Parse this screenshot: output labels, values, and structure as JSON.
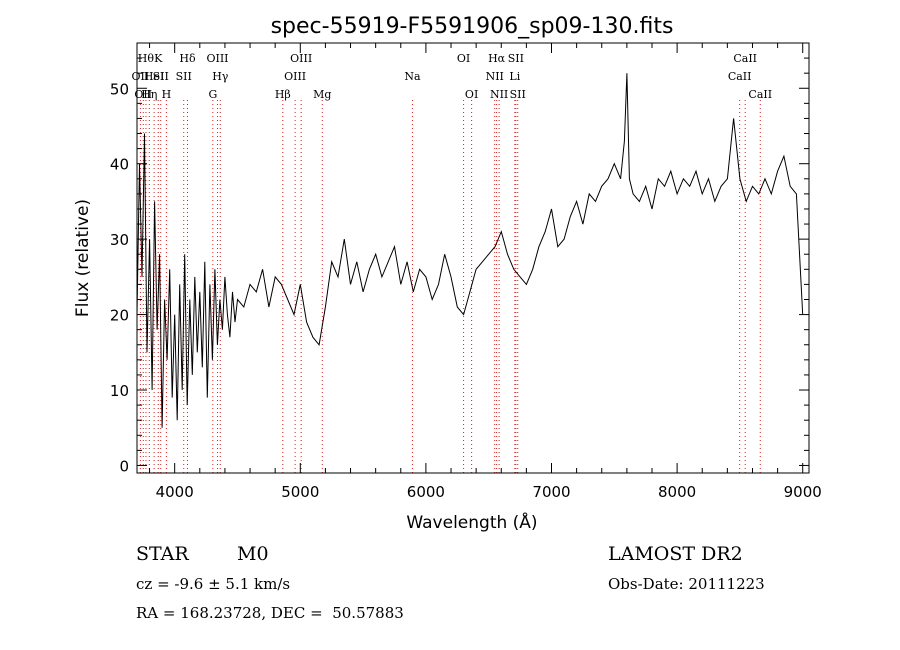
{
  "footer": {
    "object_class": "STAR",
    "subclass": "M0",
    "survey": "LAMOST DR2",
    "redshift": "cz = -9.6 ± 5.1 km/s",
    "obs_date": "Obs-Date: 20111223",
    "coords": "RA = 168.23728, DEC =  50.57883"
  },
  "chart_data": {
    "type": "line",
    "title": "spec-55919-F5591906_sp09-130.fits",
    "xlabel": "Wavelength (Å)",
    "ylabel": "Flux (relative)",
    "xlim": [
      3700,
      9050
    ],
    "ylim": [
      -1,
      56
    ],
    "xticks": [
      4000,
      5000,
      6000,
      7000,
      8000,
      9000
    ],
    "yticks": [
      0,
      10,
      20,
      30,
      40,
      50
    ],
    "grid": false,
    "line_color": "#000000",
    "marker_color": "#cc2222",
    "series": [
      {
        "x": [
          3700,
          3720,
          3740,
          3760,
          3780,
          3800,
          3820,
          3840,
          3860,
          3880,
          3900,
          3920,
          3940,
          3960,
          3980,
          4000,
          4020,
          4040,
          4060,
          4080,
          4100,
          4120,
          4140,
          4160,
          4180,
          4200,
          4220,
          4240,
          4260,
          4280,
          4300,
          4320,
          4340,
          4360,
          4380,
          4400,
          4420,
          4440,
          4460,
          4480,
          4500,
          4550,
          4600,
          4650,
          4700,
          4750,
          4800,
          4850,
          4900,
          4950,
          5000,
          5050,
          5100,
          5150,
          5200,
          5250,
          5300,
          5350,
          5400,
          5450,
          5500,
          5550,
          5600,
          5650,
          5700,
          5750,
          5800,
          5850,
          5900,
          5950,
          6000,
          6050,
          6100,
          6150,
          6200,
          6250,
          6300,
          6350,
          6400,
          6450,
          6500,
          6550,
          6600,
          6650,
          6700,
          6750,
          6800,
          6850,
          6900,
          6950,
          7000,
          7050,
          7100,
          7150,
          7200,
          7250,
          7300,
          7350,
          7400,
          7450,
          7500,
          7550,
          7580,
          7600,
          7620,
          7650,
          7700,
          7750,
          7800,
          7850,
          7900,
          7950,
          8000,
          8050,
          8100,
          8150,
          8200,
          8250,
          8300,
          8350,
          8400,
          8450,
          8500,
          8550,
          8600,
          8650,
          8700,
          8750,
          8800,
          8850,
          8900,
          8950,
          9000
        ],
        "y": [
          20,
          40,
          25,
          44,
          15,
          30,
          10,
          35,
          18,
          28,
          5,
          22,
          14,
          26,
          9,
          20,
          6,
          24,
          10,
          28,
          8,
          22,
          12,
          25,
          15,
          23,
          13,
          27,
          9,
          24,
          14,
          26,
          16,
          22,
          18,
          25,
          20,
          17,
          23,
          19,
          22,
          21,
          24,
          23,
          26,
          21,
          25,
          24,
          22,
          20,
          24,
          19,
          17,
          16,
          21,
          27,
          25,
          30,
          24,
          27,
          23,
          26,
          28,
          25,
          27,
          29,
          24,
          27,
          23,
          26,
          25,
          22,
          24,
          28,
          25,
          21,
          20,
          23,
          26,
          27,
          28,
          29,
          31,
          28,
          26,
          25,
          24,
          26,
          29,
          31,
          34,
          29,
          30,
          33,
          35,
          32,
          36,
          35,
          37,
          38,
          40,
          38,
          43,
          52,
          38,
          36,
          35,
          37,
          34,
          38,
          37,
          39,
          36,
          38,
          37,
          39,
          36,
          38,
          35,
          37,
          38,
          46,
          38,
          35,
          37,
          36,
          38,
          36,
          39,
          41,
          37,
          36,
          20
        ]
      }
    ],
    "line_markers": [
      {
        "wl": 3727,
        "label": "OII",
        "row": 2
      },
      {
        "wl": 3750,
        "label": "OII",
        "row": 3
      },
      {
        "wl": 3771,
        "label": "Hθ",
        "row": 1
      },
      {
        "wl": 3798,
        "label": "Hη",
        "row": 3
      },
      {
        "wl": 3836,
        "label": "HeI",
        "row": 2
      },
      {
        "wl": 3869,
        "label": "K",
        "row": 1
      },
      {
        "wl": 3889,
        "label": "SII",
        "row": 2
      },
      {
        "wl": 3934,
        "label": "H",
        "row": 3
      },
      {
        "wl": 4102,
        "label": "Hδ",
        "row": 1
      },
      {
        "wl": 4072,
        "label": "SII",
        "row": 2
      },
      {
        "wl": 4341,
        "label": "OIII",
        "row": 1
      },
      {
        "wl": 4363,
        "label": "Hγ",
        "row": 2
      },
      {
        "wl": 4304,
        "label": "G",
        "row": 3
      },
      {
        "wl": 4861,
        "label": "Hβ",
        "row": 3
      },
      {
        "wl": 4959,
        "label": "OIII",
        "row": 2
      },
      {
        "wl": 5007,
        "label": "OIII",
        "row": 1
      },
      {
        "wl": 5175,
        "label": "Mg",
        "row": 3
      },
      {
        "wl": 5893,
        "label": "Na",
        "row": 2
      },
      {
        "wl": 6300,
        "label": "OI",
        "row": 1
      },
      {
        "wl": 6364,
        "label": "OI",
        "row": 3
      },
      {
        "wl": 6548,
        "label": "NII",
        "row": 2
      },
      {
        "wl": 6563,
        "label": "Hα",
        "row": 1
      },
      {
        "wl": 6583,
        "label": "NII",
        "row": 3
      },
      {
        "wl": 6708,
        "label": "Li",
        "row": 2
      },
      {
        "wl": 6716,
        "label": "SII",
        "row": 1
      },
      {
        "wl": 6731,
        "label": "SII",
        "row": 3
      },
      {
        "wl": 8498,
        "label": "CaII",
        "row": 2
      },
      {
        "wl": 8542,
        "label": "CaII",
        "row": 1
      },
      {
        "wl": 8662,
        "label": "CaII",
        "row": 3
      }
    ]
  }
}
